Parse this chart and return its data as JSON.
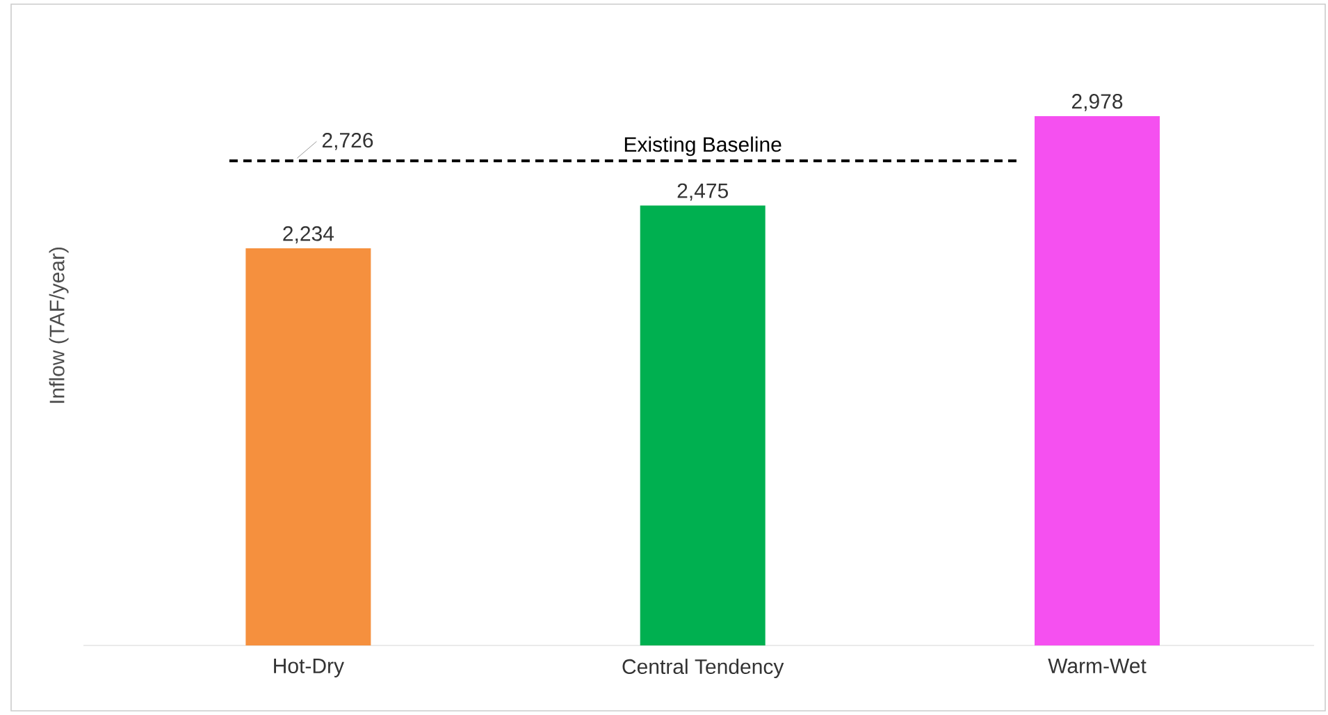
{
  "chart_data": {
    "type": "bar",
    "ylabel": "Inflow (TAF/year)",
    "categories": [
      "Hot-Dry",
      "Central Tendency",
      "Warm-Wet"
    ],
    "values": [
      2234,
      2475,
      2978
    ],
    "value_labels": [
      "2,234",
      "2,475",
      "2,978"
    ],
    "colors": [
      "#f5903e",
      "#00b050",
      "#f550f0"
    ],
    "ylim": [
      0,
      3600
    ],
    "tick_labels": "x",
    "ref_lines": [
      {
        "axis": "y",
        "value": 2726,
        "label": "Existing Baseline",
        "color": "#000000",
        "line_style": "dashed"
      }
    ],
    "annotations": [
      {
        "text": "2,726",
        "x": "Hot-Dry",
        "y": 2726
      }
    ]
  }
}
